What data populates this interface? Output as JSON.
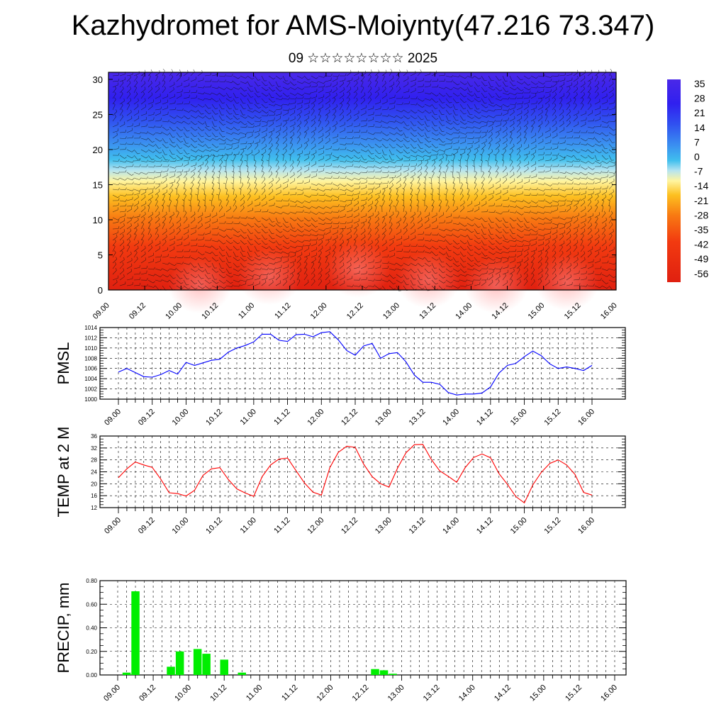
{
  "title": "Kazhydromet for AMS-Moiynty(47.216 73.347)",
  "subtitle": "09 ☆☆☆☆☆☆☆☆ 2025",
  "time_ticks": [
    "09.00",
    "09.12",
    "10.00",
    "10.12",
    "11.00",
    "11.12",
    "12.00",
    "12.12",
    "13.00",
    "13.12",
    "14.00",
    "14.12",
    "15.00",
    "15.12",
    "16.00"
  ],
  "chart_data": [
    {
      "type": "heatmap",
      "name": "cross-section",
      "x_ticks": [
        "09.00",
        "09.12",
        "10.00",
        "10.12",
        "11.00",
        "11.12",
        "12.00",
        "12.12",
        "13.00",
        "13.12",
        "14.00",
        "14.12",
        "15.00",
        "15.12",
        "16.00"
      ],
      "ylim": [
        0,
        31
      ],
      "y_ticks": [
        "0",
        "5",
        "10",
        "15",
        "20",
        "25",
        "30"
      ],
      "colorbar": {
        "labels": [
          "35",
          "28",
          "21",
          "14",
          "7",
          "0",
          "-7",
          "-14",
          "-21",
          "-28",
          "-35",
          "-42",
          "-49",
          "-56"
        ],
        "values": [
          35,
          28,
          21,
          14,
          7,
          0,
          -7,
          -14,
          -21,
          -28,
          -35,
          -42,
          -49,
          -56
        ]
      },
      "overlay": "wind barbs"
    },
    {
      "type": "line",
      "ylabel": "PMSL",
      "ylim": [
        1000,
        1014
      ],
      "y_ticks": [
        "1014",
        "1012",
        "1010",
        "1008",
        "1006",
        "1004",
        "1002",
        "1000"
      ],
      "color": "#0000ff",
      "series": [
        {
          "values": [
            1005.3,
            1006.0,
            1005.2,
            1004.4,
            1004.3,
            1004.8,
            1005.6,
            1004.9,
            1007.2,
            1006.6,
            1007.1,
            1007.6,
            1007.8,
            1009.2,
            1010.0,
            1010.5,
            1011.2,
            1012.7,
            1012.7,
            1011.5,
            1011.3,
            1012.6,
            1012.7,
            1012.2,
            1013.0,
            1013.2,
            1011.6,
            1009.5,
            1008.6,
            1010.4,
            1010.9,
            1008.0,
            1008.9,
            1009.1,
            1007.3,
            1004.7,
            1003.3,
            1003.3,
            1002.9,
            1001.3,
            1000.8,
            1001.0,
            1001.0,
            1001.2,
            1002.4,
            1005.1,
            1006.6,
            1007.0,
            1008.3,
            1009.4,
            1008.5,
            1006.9,
            1006.0,
            1006.3,
            1006.0,
            1005.6,
            1006.6
          ]
        }
      ]
    },
    {
      "type": "line",
      "ylabel": "TEMP at 2 M",
      "ylim": [
        12,
        36
      ],
      "y_ticks": [
        "36",
        "32",
        "28",
        "24",
        "20",
        "16",
        "12"
      ],
      "color": "#ff0000",
      "series": [
        {
          "values": [
            22.0,
            25.0,
            27.3,
            26.3,
            25.5,
            21.6,
            17.0,
            16.7,
            15.9,
            17.8,
            22.8,
            25.0,
            25.4,
            21.4,
            18.3,
            16.9,
            15.8,
            22.4,
            26.3,
            28.3,
            28.6,
            24.4,
            20.3,
            17.2,
            16.2,
            25.4,
            30.5,
            32.6,
            32.2,
            26.6,
            22.4,
            20.0,
            18.9,
            25.2,
            30.4,
            33.1,
            33.2,
            28.1,
            24.3,
            22.5,
            20.5,
            25.4,
            28.8,
            30.0,
            28.7,
            23.4,
            19.8,
            15.7,
            13.6,
            19.6,
            23.8,
            26.8,
            28.0,
            26.3,
            23.1,
            17.1,
            16.2
          ]
        }
      ]
    },
    {
      "type": "bar",
      "ylabel": "PRECIP, mm",
      "ylim": [
        0,
        0.8
      ],
      "y_ticks": [
        "0.80",
        "0.60",
        "0.40",
        "0.20",
        "0.00"
      ],
      "color": "#00ee00",
      "series": [
        {
          "values": [
            0,
            0.02,
            0.71,
            0,
            0,
            0,
            0.07,
            0.2,
            0,
            0.22,
            0.18,
            0,
            0.13,
            0,
            0.02,
            0,
            0,
            0,
            0,
            0,
            0,
            0,
            0,
            0,
            0,
            0,
            0,
            0,
            0,
            0.05,
            0.04,
            0.01,
            0,
            0,
            0,
            0,
            0,
            0,
            0,
            0,
            0,
            0,
            0,
            0,
            0,
            0,
            0,
            0,
            0,
            0,
            0,
            0,
            0,
            0,
            0,
            0,
            0
          ]
        }
      ]
    }
  ]
}
